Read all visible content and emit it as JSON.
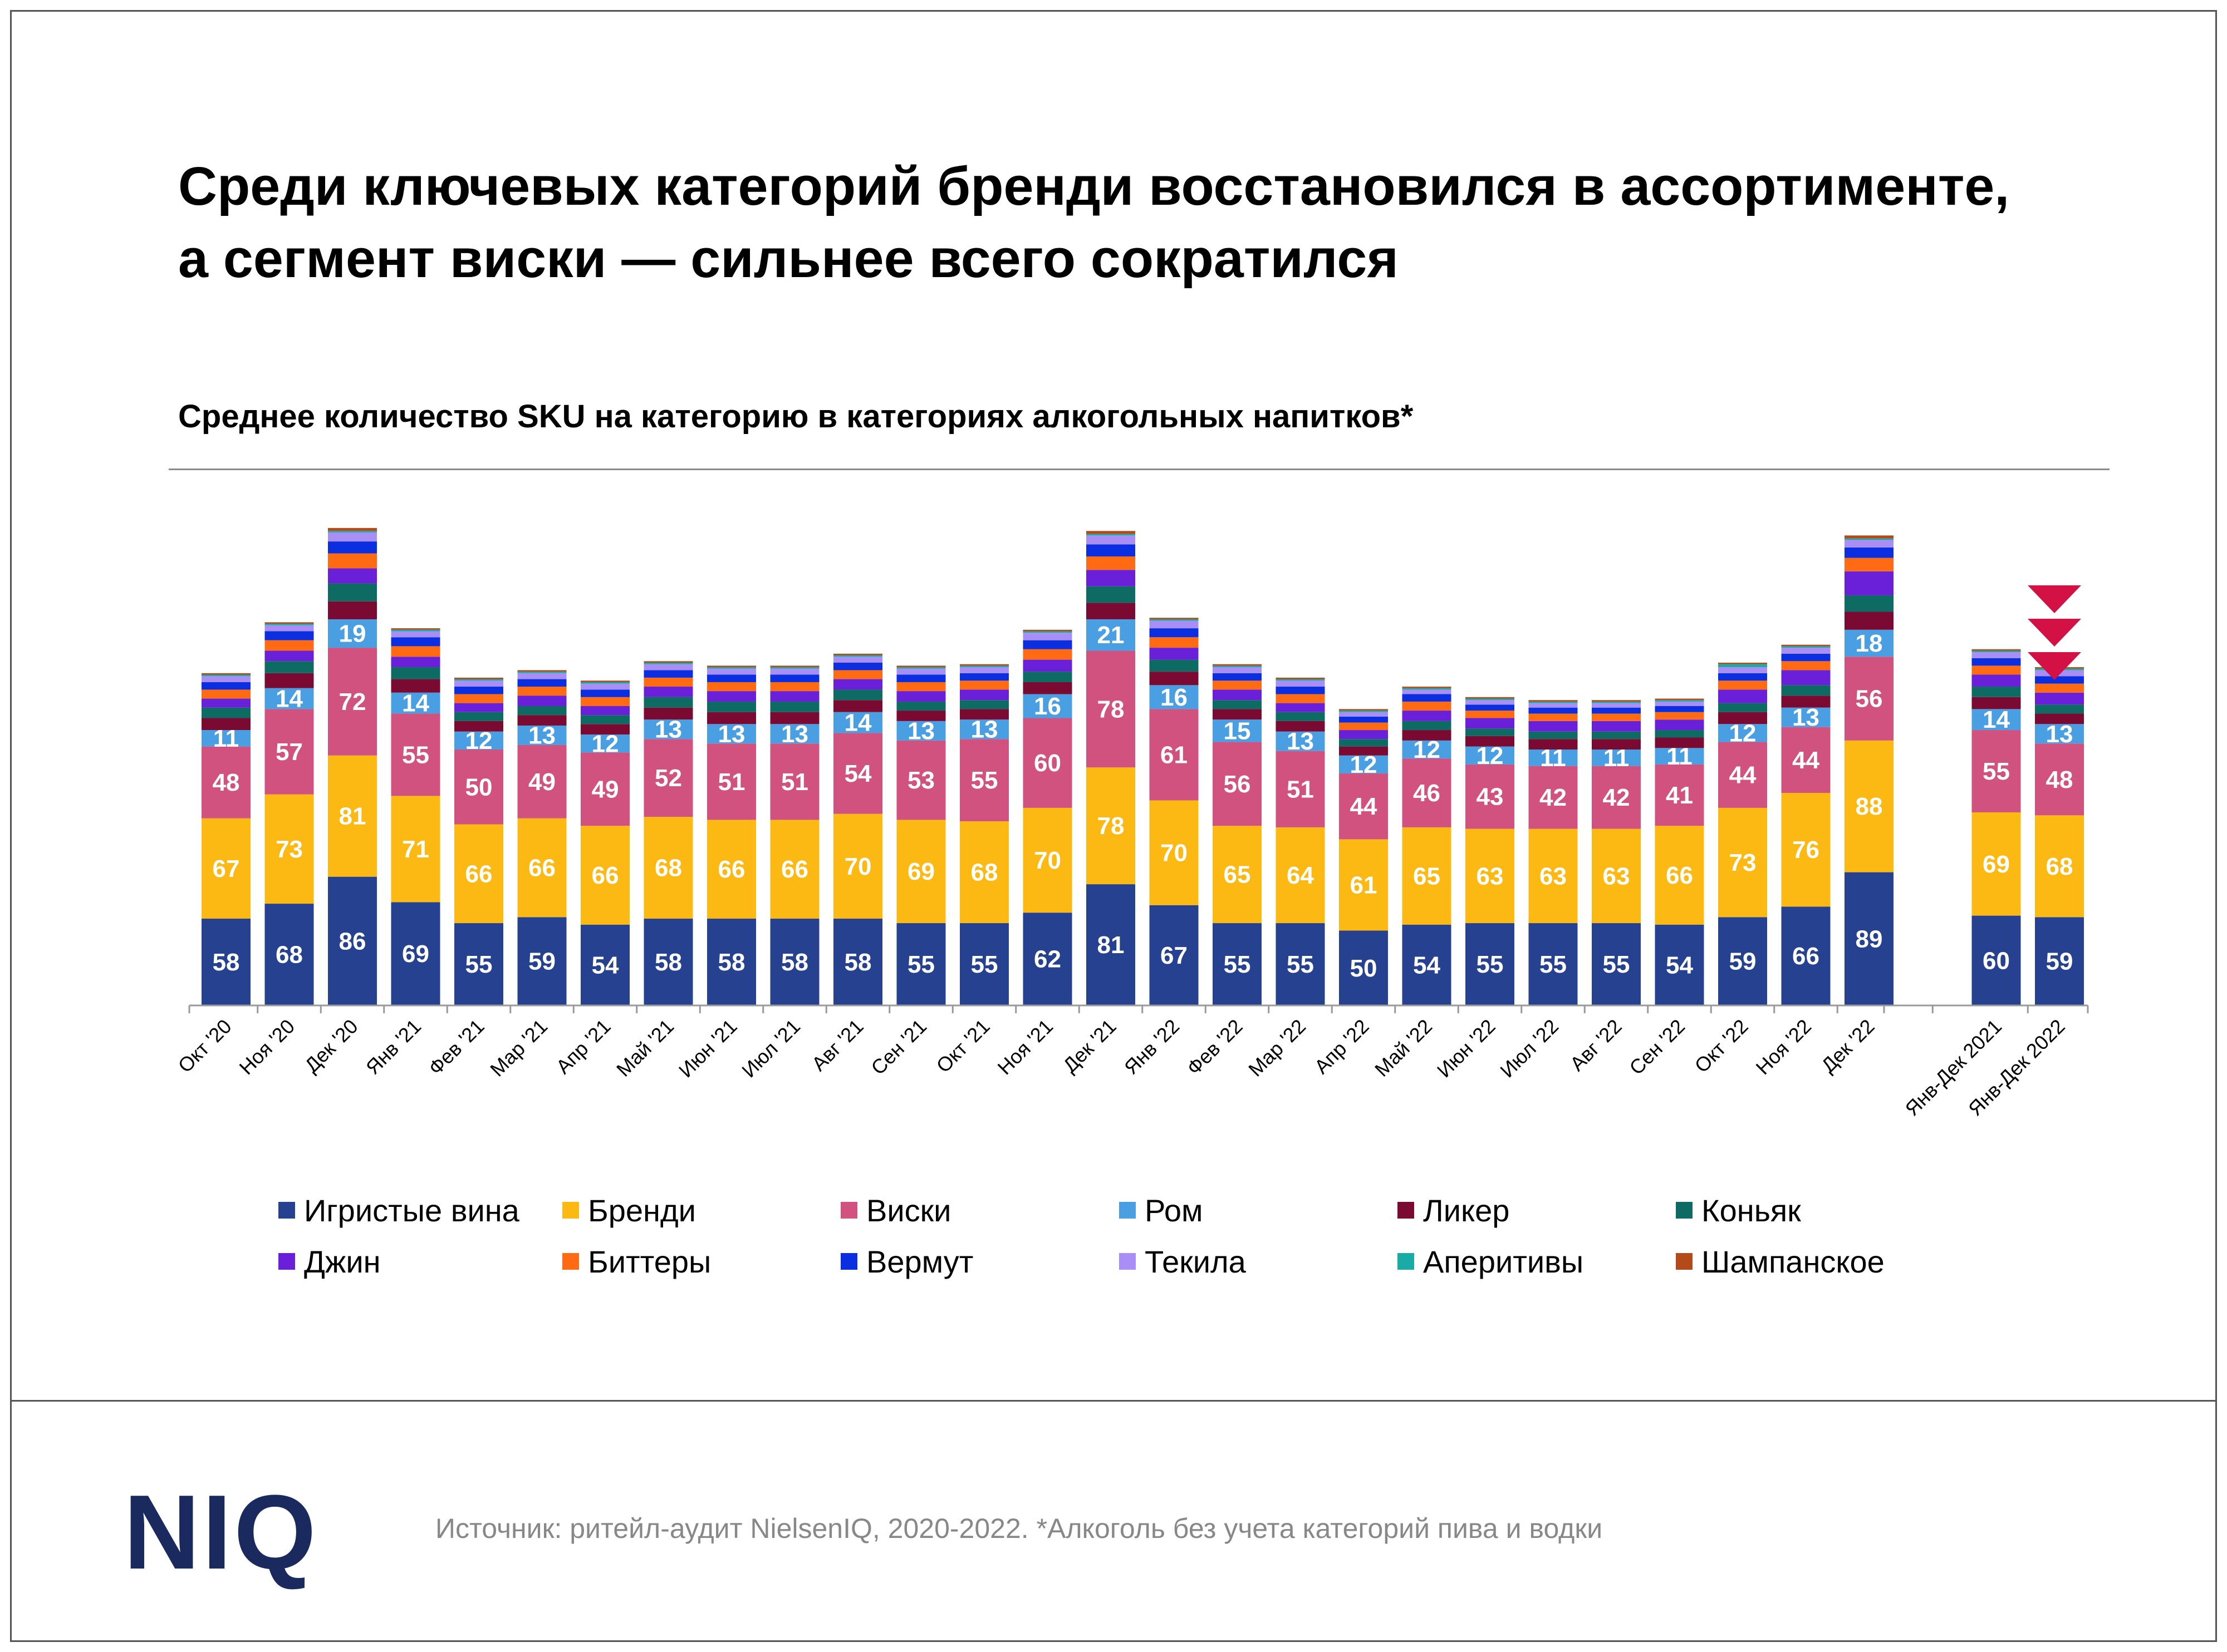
{
  "header": {
    "title": "Среди ключевых категорий бренди восстановился в ассортименте,\nа сегмент виски — сильнее всего сократился",
    "subtitle": "Среднее количество SKU на категорию в категориях алкогольных напитков*"
  },
  "footer": {
    "logo": "NIQ",
    "source": "Источник: ритейл-аудит NielsenIQ, 2020-2022. *Алкоголь без учета категорий пива и водки"
  },
  "chart_data": {
    "type": "bar",
    "stacked": true,
    "categories": [
      "Окт '20",
      "Ноя '20",
      "Дек '20",
      "Янв '21",
      "Фев '21",
      "Мар '21",
      "Апр '21",
      "Май '21",
      "Июн '21",
      "Июл '21",
      "Авг '21",
      "Сен '21",
      "Окт '21",
      "Ноя '21",
      "Дек '21",
      "Янв '22",
      "Фев '22",
      "Мар '22",
      "Апр '22",
      "Май '22",
      "Июн '22",
      "Июл '22",
      "Авг '22",
      "Сен '22",
      "Окт '22",
      "Ноя '22",
      "Дек '22",
      "Янв-Дек 2021",
      "Янв-Дек 2022"
    ],
    "series": [
      {
        "name": "Игристые вина",
        "color": "#26418f",
        "labeled": true,
        "values": [
          58,
          68,
          86,
          69,
          55,
          59,
          54,
          58,
          58,
          58,
          58,
          55,
          55,
          62,
          81,
          67,
          55,
          55,
          50,
          54,
          55,
          55,
          55,
          54,
          59,
          66,
          89,
          60,
          59
        ]
      },
      {
        "name": "Бренди",
        "color": "#fdb913",
        "labeled": true,
        "values": [
          67,
          73,
          81,
          71,
          66,
          66,
          66,
          68,
          66,
          66,
          70,
          69,
          68,
          70,
          78,
          70,
          65,
          64,
          61,
          65,
          63,
          63,
          63,
          66,
          73,
          76,
          88,
          69,
          68
        ]
      },
      {
        "name": "Виски",
        "color": "#d2527f",
        "labeled": true,
        "values": [
          48,
          57,
          72,
          55,
          50,
          49,
          49,
          52,
          51,
          51,
          54,
          53,
          55,
          60,
          78,
          61,
          56,
          51,
          44,
          46,
          43,
          42,
          42,
          41,
          44,
          44,
          56,
          55,
          48
        ]
      },
      {
        "name": "Ром",
        "color": "#4a9fe3",
        "labeled": true,
        "values": [
          11,
          14,
          19,
          14,
          12,
          13,
          12,
          13,
          13,
          13,
          14,
          13,
          13,
          16,
          21,
          16,
          15,
          13,
          12,
          12,
          12,
          11,
          11,
          11,
          12,
          13,
          18,
          14,
          13
        ]
      },
      {
        "name": "Ликер",
        "color": "#7b0a32",
        "labeled": false,
        "values": [
          8,
          10,
          12,
          9,
          7,
          7,
          7,
          8,
          8,
          8,
          8,
          7,
          7,
          8,
          11,
          9,
          7,
          7,
          6,
          7,
          7,
          7,
          7,
          7,
          8,
          8,
          12,
          8,
          7
        ]
      },
      {
        "name": "Коньяк",
        "color": "#0e6b63",
        "labeled": false,
        "values": [
          7,
          8,
          12,
          8,
          6,
          6,
          6,
          7,
          7,
          7,
          7,
          6,
          6,
          7,
          11,
          8,
          6,
          6,
          5,
          6,
          5,
          5,
          5,
          5,
          6,
          7,
          11,
          7,
          6
        ]
      },
      {
        "name": "Джин",
        "color": "#6a1fd8",
        "labeled": false,
        "values": [
          6,
          7,
          10,
          7,
          6,
          7,
          6,
          7,
          7,
          7,
          7,
          7,
          7,
          8,
          11,
          8,
          7,
          6,
          6,
          7,
          7,
          7,
          7,
          7,
          9,
          10,
          16,
          8,
          8
        ]
      },
      {
        "name": "Биттеры",
        "color": "#ff6a13",
        "labeled": false,
        "values": [
          6,
          7,
          10,
          7,
          6,
          6,
          6,
          6,
          6,
          6,
          6,
          6,
          6,
          7,
          9,
          7,
          6,
          6,
          5,
          6,
          5,
          5,
          5,
          5,
          6,
          6,
          9,
          6,
          6
        ]
      },
      {
        "name": "Вермут",
        "color": "#0a2ee0",
        "labeled": false,
        "values": [
          5,
          6,
          8,
          6,
          5,
          5,
          5,
          5,
          5,
          5,
          5,
          5,
          5,
          6,
          8,
          6,
          5,
          5,
          4,
          5,
          4,
          4,
          4,
          4,
          5,
          5,
          7,
          5,
          5
        ]
      },
      {
        "name": "Текила",
        "color": "#a98ff5",
        "labeled": false,
        "values": [
          4,
          4,
          6,
          4,
          4,
          4,
          4,
          4,
          4,
          4,
          4,
          4,
          4,
          5,
          6,
          5,
          4,
          4,
          3,
          3,
          3,
          3,
          3,
          3,
          4,
          4,
          5,
          4,
          4
        ]
      },
      {
        "name": "Аперитивы",
        "color": "#1aaba7",
        "labeled": false,
        "values": [
          1,
          1,
          1,
          1,
          1,
          1,
          1,
          1,
          1,
          1,
          1,
          1,
          1,
          1,
          1,
          1,
          1,
          1,
          1,
          1,
          1,
          1,
          1,
          1,
          2,
          1,
          1,
          1,
          1
        ]
      },
      {
        "name": "Шампанское",
        "color": "#b4491a",
        "labeled": false,
        "values": [
          1,
          1,
          2,
          1,
          1,
          1,
          1,
          1,
          1,
          1,
          1,
          1,
          1,
          1,
          2,
          1,
          1,
          1,
          1,
          1,
          1,
          1,
          1,
          1,
          1,
          1,
          2,
          1,
          1
        ]
      }
    ],
    "legend_position": "bottom",
    "grid": false,
    "annotation": {
      "type": "down-arrows",
      "color": "#d31145",
      "count": 3
    }
  }
}
